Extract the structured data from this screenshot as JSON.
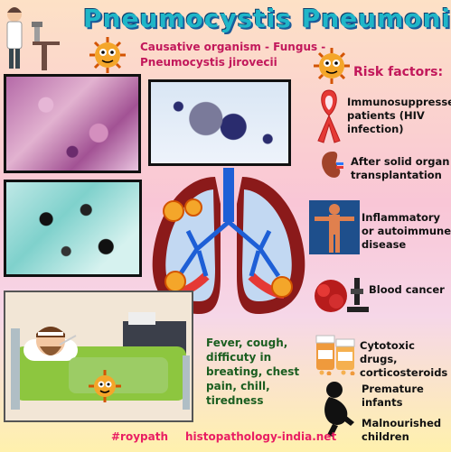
{
  "title": "Pneumocystis Pneumonia",
  "causative": {
    "line1": "Causative organism - Fungus -",
    "line2": "Pneumocystis jirovecii"
  },
  "risk_factors": {
    "heading": "Risk factors:",
    "items": [
      {
        "icon": "ribbon-icon",
        "lines": [
          "Immunosuppressed",
          "patients (HIV",
          "infection)"
        ]
      },
      {
        "icon": "kidney-icon",
        "lines": [
          "After solid organ",
          "transplantation"
        ]
      },
      {
        "icon": "body-icon",
        "lines": [
          "Inflammatory",
          "or autoimmune",
          "disease"
        ]
      },
      {
        "icon": "blood-cells-icon",
        "lines": [
          "Blood cancer"
        ]
      },
      {
        "icon": "pill-bottles-icon",
        "lines": [
          "Cytotoxic drugs,",
          "corticosteroids"
        ]
      },
      {
        "icon": "infant-icon",
        "lines": [
          "Premature",
          "infants"
        ]
      },
      {
        "icon": "infant-icon",
        "lines": [
          "Malnourished",
          "children"
        ]
      }
    ]
  },
  "symptoms": [
    "Fever, cough,",
    "difficuty in",
    "breating, chest",
    "pain, chill,",
    "tiredness"
  ],
  "footer": {
    "hashtag": "#roypath",
    "site": "histopathology-india.net"
  },
  "colors": {
    "title": "#1fb6c8",
    "accent": "#c2185b",
    "symptoms": "#1b5e20",
    "footer": "#e91e63"
  }
}
